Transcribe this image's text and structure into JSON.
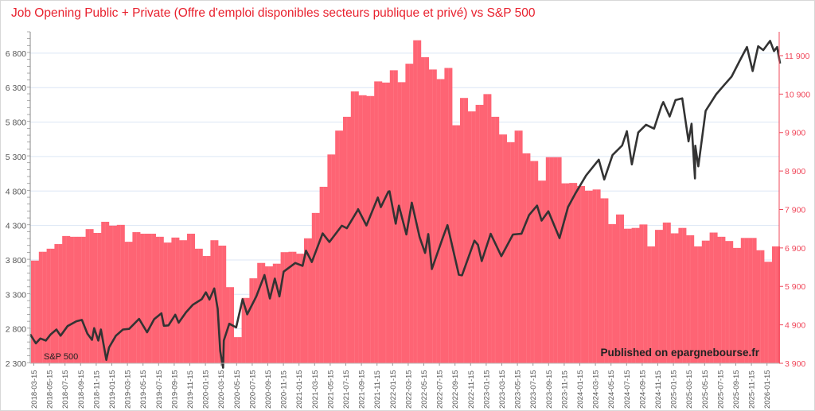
{
  "chart_data": {
    "type": "bar+line",
    "title": "Job Opening Public + Private (Offre d'emploi disponibles secteurs publique et privé) vs S&P 500",
    "annotations": {
      "series_label": "S&P 500",
      "watermark": "Published on epargnebourse.fr"
    },
    "colors": {
      "title": "#e8212e",
      "bars": "#fe6474",
      "line": "#333333",
      "right_axis": "#f0475a",
      "grid": "#dce6f5"
    },
    "grid": true,
    "left_axis": {
      "ylim": [
        2300,
        7110
      ],
      "ticks": [
        "2 300",
        "2 800",
        "3 300",
        "3 800",
        "4 300",
        "4 800",
        "5 300",
        "5 800",
        "6 300",
        "6 800"
      ],
      "tick_values": [
        2300,
        2800,
        3300,
        3800,
        4300,
        4800,
        5300,
        5800,
        6300,
        6800
      ]
    },
    "right_axis": {
      "ylim": [
        3900,
        12520
      ],
      "ticks": [
        "3 900",
        "4 900",
        "5 900",
        "6 900",
        "7 900",
        "8 900",
        "9 900",
        "10 900",
        "11 900"
      ],
      "tick_values": [
        3900,
        4900,
        5900,
        6900,
        7900,
        8900,
        9900,
        10900,
        11900
      ]
    },
    "x_ticks": [
      "2018-03-15",
      "2018-05-15",
      "2018-07-15",
      "2018-09-15",
      "2018-11-15",
      "2019-01-15",
      "2019-03-15",
      "2019-05-15",
      "2019-07-15",
      "2019-09-15",
      "2019-11-15",
      "2020-01-15",
      "2020-03-15",
      "2020-05-15",
      "2020-07-15",
      "2020-09-15",
      "2020-11-15",
      "2021-01-15",
      "2021-03-15",
      "2021-05-15",
      "2021-07-15",
      "2021-09-15",
      "2021-11-15",
      "2022-01-15",
      "2022-03-15",
      "2022-05-15",
      "2022-07-15",
      "2022-09-15",
      "2022-11-15",
      "2023-01-15",
      "2023-03-15",
      "2023-05-15",
      "2023-07-15",
      "2023-09-15",
      "2023-11-15",
      "2024-01-15",
      "2024-03-15",
      "2024-05-15",
      "2024-07-15",
      "2024-09-15",
      "2024-11-15",
      "2025-01-15",
      "2025-03-15",
      "2025-05-15",
      "2025-07-15",
      "2025-09-15",
      "2025-11-15",
      "2026-01-15"
    ],
    "job_openings": {
      "axis": "right",
      "start_month": "2018-03",
      "values": [
        6570,
        6800,
        6880,
        7000,
        7210,
        7190,
        7190,
        7390,
        7290,
        7580,
        7480,
        7500,
        7060,
        7310,
        7270,
        7270,
        7190,
        7040,
        7170,
        7100,
        7270,
        6880,
        6690,
        7100,
        6960,
        5880,
        4580,
        5600,
        6110,
        6510,
        6420,
        6490,
        6790,
        6800,
        6750,
        7150,
        7810,
        8490,
        9330,
        9950,
        10310,
        10970,
        10870,
        10850,
        11230,
        11200,
        11520,
        11210,
        11690,
        12300,
        11860,
        11540,
        11290,
        11580,
        10090,
        10800,
        10450,
        10620,
        10900,
        10310,
        9850,
        9650,
        9950,
        9360,
        9160,
        8650,
        9260,
        9260,
        8580,
        8590,
        8510,
        8390,
        8420,
        8190,
        7520,
        7770,
        7400,
        7420,
        7510,
        6940,
        7370,
        7560,
        7280,
        7420,
        7230,
        6940,
        7090,
        7300,
        7190,
        7080,
        6900,
        7160,
        7160,
        6840,
        6540,
        6940
      ]
    },
    "sp500": {
      "axis": "left",
      "points": [
        [
          "2018-03-01",
          2720
        ],
        [
          "2018-03-23",
          2590
        ],
        [
          "2018-04-10",
          2660
        ],
        [
          "2018-05-01",
          2630
        ],
        [
          "2018-05-20",
          2720
        ],
        [
          "2018-06-12",
          2790
        ],
        [
          "2018-06-28",
          2700
        ],
        [
          "2018-07-25",
          2840
        ],
        [
          "2018-08-29",
          2910
        ],
        [
          "2018-09-20",
          2930
        ],
        [
          "2018-10-11",
          2730
        ],
        [
          "2018-10-29",
          2640
        ],
        [
          "2018-11-07",
          2810
        ],
        [
          "2018-11-23",
          2630
        ],
        [
          "2018-12-03",
          2790
        ],
        [
          "2018-12-24",
          2350
        ],
        [
          "2019-01-04",
          2530
        ],
        [
          "2019-01-31",
          2700
        ],
        [
          "2019-02-28",
          2790
        ],
        [
          "2019-03-22",
          2800
        ],
        [
          "2019-04-30",
          2945
        ],
        [
          "2019-05-31",
          2750
        ],
        [
          "2019-06-28",
          2940
        ],
        [
          "2019-07-26",
          3025
        ],
        [
          "2019-08-05",
          2845
        ],
        [
          "2019-08-23",
          2850
        ],
        [
          "2019-09-19",
          3005
        ],
        [
          "2019-10-02",
          2890
        ],
        [
          "2019-10-31",
          3040
        ],
        [
          "2019-11-27",
          3150
        ],
        [
          "2019-12-31",
          3230
        ],
        [
          "2020-01-17",
          3330
        ],
        [
          "2020-01-31",
          3225
        ],
        [
          "2020-02-19",
          3386
        ],
        [
          "2020-03-02",
          3090
        ],
        [
          "2020-03-12",
          2480
        ],
        [
          "2020-03-16",
          2385
        ],
        [
          "2020-03-23",
          2237
        ],
        [
          "2020-03-26",
          2630
        ],
        [
          "2020-04-17",
          2875
        ],
        [
          "2020-05-13",
          2820
        ],
        [
          "2020-06-08",
          3230
        ],
        [
          "2020-06-26",
          3010
        ],
        [
          "2020-07-31",
          3270
        ],
        [
          "2020-09-02",
          3580
        ],
        [
          "2020-09-23",
          3240
        ],
        [
          "2020-10-12",
          3530
        ],
        [
          "2020-10-30",
          3270
        ],
        [
          "2020-11-16",
          3630
        ],
        [
          "2020-12-31",
          3756
        ],
        [
          "2021-01-29",
          3714
        ],
        [
          "2021-02-12",
          3935
        ],
        [
          "2021-03-04",
          3770
        ],
        [
          "2021-04-16",
          4185
        ],
        [
          "2021-05-12",
          4060
        ],
        [
          "2021-06-30",
          4297
        ],
        [
          "2021-07-19",
          4260
        ],
        [
          "2021-08-31",
          4522
        ],
        [
          "2021-09-02",
          4537
        ],
        [
          "2021-10-04",
          4300
        ],
        [
          "2021-11-18",
          4705
        ],
        [
          "2021-11-30",
          4567
        ],
        [
          "2021-12-29",
          4793
        ],
        [
          "2022-01-03",
          4796
        ],
        [
          "2022-01-27",
          4326
        ],
        [
          "2022-02-09",
          4587
        ],
        [
          "2022-03-08",
          4170
        ],
        [
          "2022-03-29",
          4631
        ],
        [
          "2022-04-29",
          4132
        ],
        [
          "2022-05-20",
          3901
        ],
        [
          "2022-06-02",
          4176
        ],
        [
          "2022-06-16",
          3667
        ],
        [
          "2022-07-29",
          4130
        ],
        [
          "2022-08-16",
          4305
        ],
        [
          "2022-09-30",
          3585
        ],
        [
          "2022-10-12",
          3577
        ],
        [
          "2022-11-30",
          4080
        ],
        [
          "2022-12-13",
          4019
        ],
        [
          "2022-12-28",
          3783
        ],
        [
          "2023-02-02",
          4179
        ],
        [
          "2023-03-13",
          3855
        ],
        [
          "2023-04-28",
          4169
        ],
        [
          "2023-05-31",
          4180
        ],
        [
          "2023-06-30",
          4450
        ],
        [
          "2023-07-31",
          4589
        ],
        [
          "2023-08-18",
          4370
        ],
        [
          "2023-09-14",
          4505
        ],
        [
          "2023-10-27",
          4117
        ],
        [
          "2023-11-30",
          4568
        ],
        [
          "2023-12-29",
          4770
        ],
        [
          "2024-02-09",
          5026
        ],
        [
          "2024-03-28",
          5254
        ],
        [
          "2024-04-19",
          4967
        ],
        [
          "2024-05-21",
          5321
        ],
        [
          "2024-06-28",
          5460
        ],
        [
          "2024-07-16",
          5667
        ],
        [
          "2024-08-05",
          5186
        ],
        [
          "2024-08-30",
          5648
        ],
        [
          "2024-09-30",
          5762
        ],
        [
          "2024-10-31",
          5705
        ],
        [
          "2024-11-29",
          6032
        ],
        [
          "2024-12-06",
          6090
        ],
        [
          "2024-12-31",
          5882
        ],
        [
          "2025-01-23",
          6119
        ],
        [
          "2025-02-19",
          6144
        ],
        [
          "2025-03-13",
          5521
        ],
        [
          "2025-03-25",
          5776
        ],
        [
          "2025-04-08",
          4982
        ],
        [
          "2025-04-09",
          5457
        ],
        [
          "2025-04-21",
          5158
        ],
        [
          "2025-05-19",
          5963
        ],
        [
          "2025-06-30",
          6205
        ],
        [
          "2025-07-31",
          6339
        ],
        [
          "2025-08-29",
          6460
        ],
        [
          "2025-09-30",
          6688
        ],
        [
          "2025-10-28",
          6890
        ],
        [
          "2025-11-20",
          6540
        ],
        [
          "2025-12-11",
          6900
        ],
        [
          "2025-12-31",
          6845
        ],
        [
          "2026-01-27",
          6978
        ],
        [
          "2026-02-12",
          6830
        ],
        [
          "2026-02-24",
          6890
        ],
        [
          "2026-03-05",
          6650
        ]
      ]
    }
  }
}
